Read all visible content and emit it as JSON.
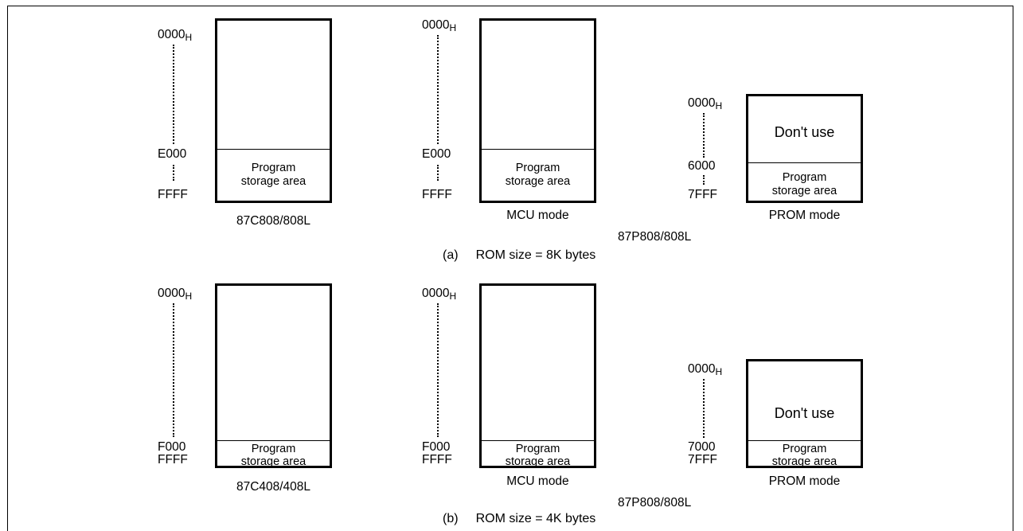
{
  "panel_a": {
    "title_tag": "(a)",
    "title_text": "ROM size = 8K bytes",
    "chip_c": {
      "label": "87C808/808L",
      "addr_top": "0000",
      "addr_sub": "H",
      "addr_mid": "E000",
      "addr_end": "FFFF",
      "area_line1": "Program",
      "area_line2": "storage area"
    },
    "chip_p": {
      "label": "87P808/808L",
      "mcu": {
        "mode": "MCU mode",
        "addr_top": "0000",
        "addr_sub": "H",
        "addr_mid": "E000",
        "addr_end": "FFFF",
        "area_line1": "Program",
        "area_line2": "storage area"
      },
      "prom": {
        "mode": "PROM mode",
        "addr_top": "0000",
        "addr_sub": "H",
        "addr_mid": "6000",
        "addr_end": "7FFF",
        "dont_use": "Don't use",
        "area_line1": "Program",
        "area_line2": "storage area"
      }
    }
  },
  "panel_b": {
    "title_tag": "(b)",
    "title_text": "ROM size = 4K bytes",
    "chip_c": {
      "label": "87C408/408L",
      "addr_top": "0000",
      "addr_sub": "H",
      "addr_mid": "F000",
      "addr_end": "FFFF",
      "area_line1": "Program",
      "area_line2": "storage area"
    },
    "chip_p": {
      "label": "87P808/808L",
      "mcu": {
        "mode": "MCU mode",
        "addr_top": "0000",
        "addr_sub": "H",
        "addr_mid": "F000",
        "addr_end": "FFFF",
        "area_line1": "Program",
        "area_line2": "storage area"
      },
      "prom": {
        "mode": "PROM mode",
        "addr_top": "0000",
        "addr_sub": "H",
        "addr_mid": "7000",
        "addr_end": "7FFF",
        "dont_use": "Don't use",
        "area_line1": "Program",
        "area_line2": "storage area"
      }
    }
  }
}
